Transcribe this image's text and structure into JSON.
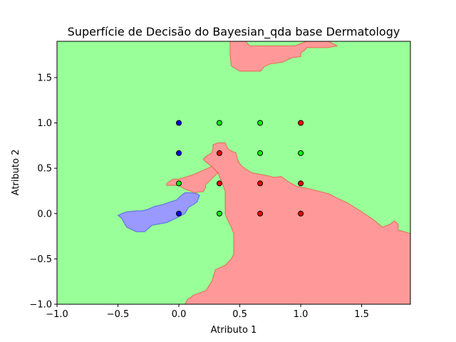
{
  "chart_data": {
    "type": "scatter",
    "title": "Superfície de Decisão do Bayesian_qda base Dermatology",
    "xlabel": "Atributo 1",
    "ylabel": "Atributo 2",
    "xlim": [
      -1.0,
      1.9
    ],
    "ylim": [
      -1.0,
      1.9
    ],
    "xticks": [
      -1.0,
      -0.5,
      0.0,
      0.5,
      1.0,
      1.5
    ],
    "yticks": [
      -1.0,
      -0.5,
      0.0,
      0.5,
      1.0,
      1.5
    ],
    "xtick_labels": [
      "−1.0",
      "−0.5",
      "0.0",
      "0.5",
      "1.0",
      "1.5"
    ],
    "ytick_labels": [
      "−1.0",
      "−0.5",
      "0.0",
      "0.5",
      "1.0",
      "1.5"
    ],
    "grid": false,
    "class_colors": {
      "blue": "#0000ff",
      "green": "#00ff00",
      "red": "#ff0000"
    },
    "region_colors": {
      "green": "#99ff99",
      "red": "#ff9999",
      "blue": "#9999ff"
    },
    "regions": [
      {
        "class": "red",
        "points": [
          [
            0.42,
            1.9
          ],
          [
            0.55,
            1.9
          ],
          [
            0.58,
            1.85
          ],
          [
            0.95,
            1.85
          ],
          [
            1.05,
            1.9
          ],
          [
            1.23,
            1.9
          ],
          [
            1.3,
            1.85
          ],
          [
            1.22,
            1.83
          ],
          [
            1.05,
            1.83
          ],
          [
            1.03,
            1.8
          ],
          [
            1.0,
            1.77
          ],
          [
            1.0,
            1.73
          ],
          [
            0.93,
            1.72
          ],
          [
            0.85,
            1.67
          ],
          [
            0.75,
            1.65
          ],
          [
            0.7,
            1.62
          ],
          [
            0.67,
            1.57
          ],
          [
            0.5,
            1.57
          ],
          [
            0.43,
            1.63
          ],
          [
            0.42,
            1.75
          ]
        ]
      },
      {
        "class": "red",
        "points": [
          [
            -0.1,
            0.31
          ],
          [
            0.0,
            0.31
          ],
          [
            0.05,
            0.27
          ],
          [
            0.13,
            0.23
          ],
          [
            0.17,
            0.24
          ],
          [
            0.2,
            0.24
          ],
          [
            0.22,
            0.29
          ],
          [
            0.22,
            0.32
          ],
          [
            0.32,
            0.45
          ],
          [
            0.32,
            0.52
          ],
          [
            0.27,
            0.52
          ],
          [
            0.12,
            0.43
          ],
          [
            0.0,
            0.38
          ],
          [
            -0.05,
            0.38
          ],
          [
            -0.1,
            0.33
          ]
        ]
      },
      {
        "class": "red",
        "points": [
          [
            0.27,
            0.67
          ],
          [
            0.28,
            0.72
          ],
          [
            0.28,
            0.76
          ],
          [
            0.32,
            0.78
          ],
          [
            0.38,
            0.78
          ],
          [
            0.4,
            0.72
          ],
          [
            0.43,
            0.69
          ],
          [
            0.47,
            0.67
          ],
          [
            0.48,
            0.6
          ],
          [
            0.5,
            0.55
          ],
          [
            0.52,
            0.52
          ],
          [
            0.55,
            0.49
          ],
          [
            0.6,
            0.45
          ],
          [
            0.72,
            0.42
          ],
          [
            0.78,
            0.4
          ],
          [
            0.84,
            0.41
          ],
          [
            0.9,
            0.35
          ],
          [
            0.97,
            0.3
          ],
          [
            1.08,
            0.27
          ],
          [
            1.23,
            0.22
          ],
          [
            1.3,
            0.17
          ],
          [
            1.38,
            0.12
          ],
          [
            1.5,
            0.02
          ],
          [
            1.6,
            -0.07
          ],
          [
            1.67,
            -0.15
          ],
          [
            1.73,
            -0.12
          ],
          [
            1.77,
            -0.08
          ],
          [
            1.8,
            -0.12
          ],
          [
            1.8,
            -0.18
          ],
          [
            1.9,
            -0.22
          ],
          [
            1.9,
            -1.0
          ],
          [
            0.05,
            -1.0
          ],
          [
            0.07,
            -0.95
          ],
          [
            0.12,
            -0.9
          ],
          [
            0.22,
            -0.85
          ],
          [
            0.27,
            -0.75
          ],
          [
            0.3,
            -0.62
          ],
          [
            0.38,
            -0.57
          ],
          [
            0.43,
            -0.5
          ],
          [
            0.45,
            -0.45
          ],
          [
            0.45,
            -0.32
          ],
          [
            0.45,
            -0.22
          ],
          [
            0.43,
            -0.15
          ],
          [
            0.4,
            -0.07
          ],
          [
            0.38,
            0.0
          ],
          [
            0.38,
            0.1
          ],
          [
            0.38,
            0.25
          ],
          [
            0.35,
            0.35
          ],
          [
            0.32,
            0.45
          ],
          [
            0.27,
            0.52
          ],
          [
            0.22,
            0.57
          ],
          [
            0.2,
            0.6
          ],
          [
            0.22,
            0.63
          ]
        ]
      },
      {
        "class": "blue",
        "points": [
          [
            -0.5,
            -0.02
          ],
          [
            -0.47,
            -0.05
          ],
          [
            -0.45,
            -0.1
          ],
          [
            -0.43,
            -0.15
          ],
          [
            -0.35,
            -0.2
          ],
          [
            -0.28,
            -0.2
          ],
          [
            -0.22,
            -0.13
          ],
          [
            -0.1,
            -0.1
          ],
          [
            -0.02,
            -0.05
          ],
          [
            0.05,
            0.0
          ],
          [
            0.08,
            0.07
          ],
          [
            0.12,
            0.1
          ],
          [
            0.15,
            0.13
          ],
          [
            0.17,
            0.2
          ],
          [
            0.15,
            0.22
          ],
          [
            0.1,
            0.23
          ],
          [
            0.05,
            0.23
          ],
          [
            0.02,
            0.2
          ],
          [
            -0.02,
            0.15
          ],
          [
            -0.07,
            0.13
          ],
          [
            -0.13,
            0.1
          ],
          [
            -0.2,
            0.08
          ],
          [
            -0.25,
            0.05
          ],
          [
            -0.3,
            0.03
          ],
          [
            -0.35,
            0.03
          ],
          [
            -0.43,
            0.02
          ],
          [
            -0.47,
            0.0
          ]
        ]
      }
    ],
    "series": [
      {
        "class": "blue",
        "points": [
          [
            0.0,
            1.0
          ],
          [
            0.0,
            0.667
          ],
          [
            0.0,
            0.0
          ]
        ]
      },
      {
        "class": "green",
        "points": [
          [
            0.333,
            1.0
          ],
          [
            0.667,
            1.0
          ],
          [
            0.667,
            0.667
          ],
          [
            1.0,
            0.667
          ],
          [
            0.0,
            0.333
          ],
          [
            0.333,
            0.0
          ]
        ]
      },
      {
        "class": "red",
        "points": [
          [
            1.0,
            1.0
          ],
          [
            0.333,
            0.667
          ],
          [
            0.333,
            0.333
          ],
          [
            0.667,
            0.333
          ],
          [
            1.0,
            0.333
          ],
          [
            0.667,
            0.0
          ],
          [
            1.0,
            0.0
          ]
        ]
      }
    ]
  }
}
